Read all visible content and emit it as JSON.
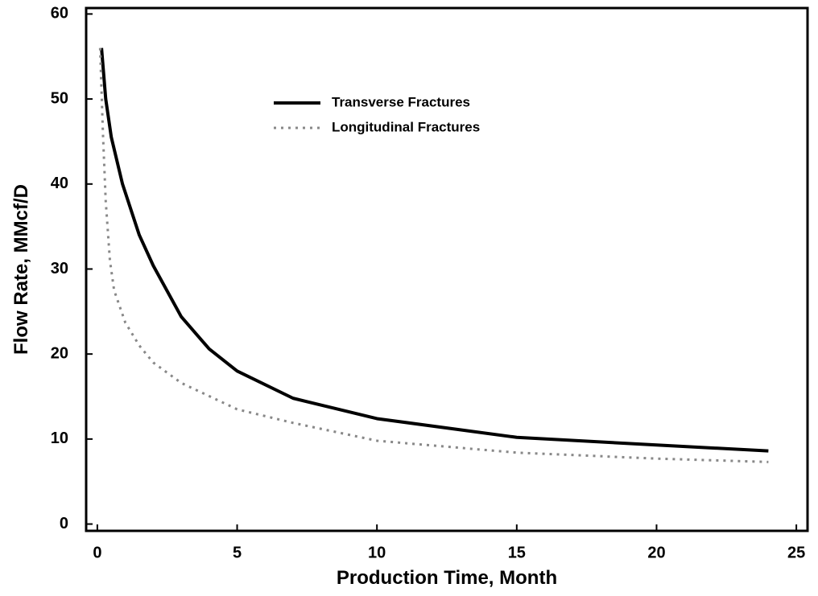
{
  "chart_data": {
    "type": "line",
    "x_label": "Production Time, Month",
    "y_label": "Flow Rate, MMcf/D",
    "xlim": [
      -0.4,
      25.4
    ],
    "ylim": [
      -0.8,
      60.7
    ],
    "xticks": [
      0,
      5,
      10,
      15,
      20,
      25
    ],
    "yticks": [
      0,
      10,
      20,
      30,
      40,
      50,
      60
    ],
    "legend": "upper center",
    "series": [
      {
        "name": "Transverse Fractures",
        "color": "#000000",
        "style": "solid",
        "x": [
          0.15,
          0.3,
          0.5,
          0.9,
          1.5,
          2,
          3,
          4,
          5,
          7,
          10,
          15,
          20,
          24
        ],
        "values": [
          56,
          50,
          45.5,
          40,
          34,
          30.4,
          24.4,
          20.6,
          18,
          14.8,
          12.4,
          10.2,
          9.3,
          8.6
        ]
      },
      {
        "name": "Longitudinal Fractures",
        "color": "#888888",
        "style": "dotted",
        "x": [
          0.1,
          0.2,
          0.3,
          0.45,
          0.6,
          1,
          1.5,
          2,
          3,
          5,
          7,
          10,
          15,
          20,
          24
        ],
        "values": [
          56,
          46,
          38,
          31,
          27.5,
          23.7,
          21,
          19,
          16.6,
          13.5,
          11.9,
          9.8,
          8.4,
          7.7,
          7.3
        ]
      }
    ]
  }
}
